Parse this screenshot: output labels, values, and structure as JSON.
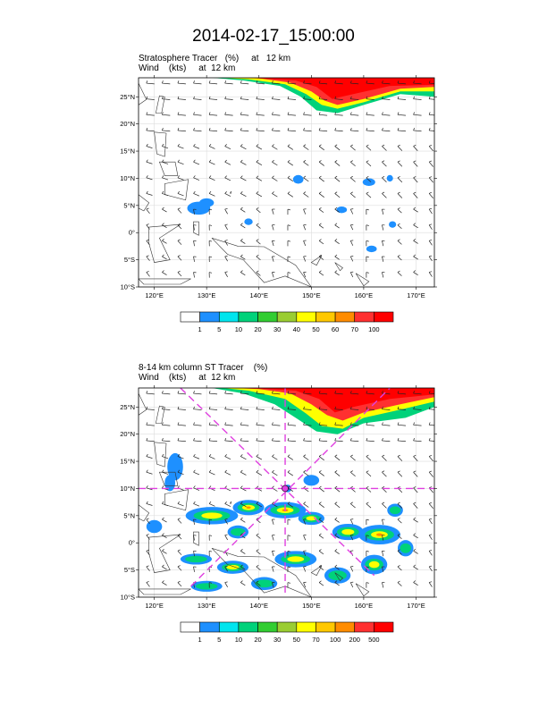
{
  "title": "2014-02-17_15:00:00",
  "panel1": {
    "field": "Stratosphere Tracer   (%)     at   12 km",
    "wind": "Wind    (kts)     at  12 km",
    "colorbar_labels": [
      "1",
      "5",
      "10",
      "20",
      "30",
      "40",
      "50",
      "60",
      "70",
      "100"
    ],
    "colors": [
      "#ffffff",
      "#1e90ff",
      "#00e5ee",
      "#00d27a",
      "#32cd32",
      "#9acd32",
      "#ffff00",
      "#ffc800",
      "#ff8c00",
      "#ff3030",
      "#ff0000"
    ]
  },
  "panel2": {
    "field": "8-14 km column ST Tracer    (%)",
    "wind": "Wind    (kts)     at  12 km",
    "colorbar_labels": [
      "1",
      "5",
      "10",
      "20",
      "30",
      "50",
      "70",
      "100",
      "200",
      "500"
    ],
    "colors": [
      "#ffffff",
      "#1e90ff",
      "#00e5ee",
      "#00d27a",
      "#32cd32",
      "#9acd32",
      "#ffff00",
      "#ffc800",
      "#ff8c00",
      "#ff3030",
      "#ff0000"
    ],
    "marker": {
      "lon": 145,
      "lat": 10
    }
  },
  "axes": {
    "lat_labels": [
      "25°N",
      "20°N",
      "15°N",
      "10°N",
      "5°N",
      "0°",
      "5°S",
      "10°S"
    ],
    "lat_values": [
      25,
      20,
      15,
      10,
      5,
      0,
      -5,
      -10
    ],
    "lon_labels": [
      "120°E",
      "130°E",
      "140°E",
      "150°E",
      "160°E",
      "170°E"
    ],
    "lon_values": [
      120,
      130,
      140,
      150,
      160,
      170
    ],
    "lon_range": [
      117,
      173.5
    ],
    "lat_range": [
      -10,
      28.5
    ]
  }
}
